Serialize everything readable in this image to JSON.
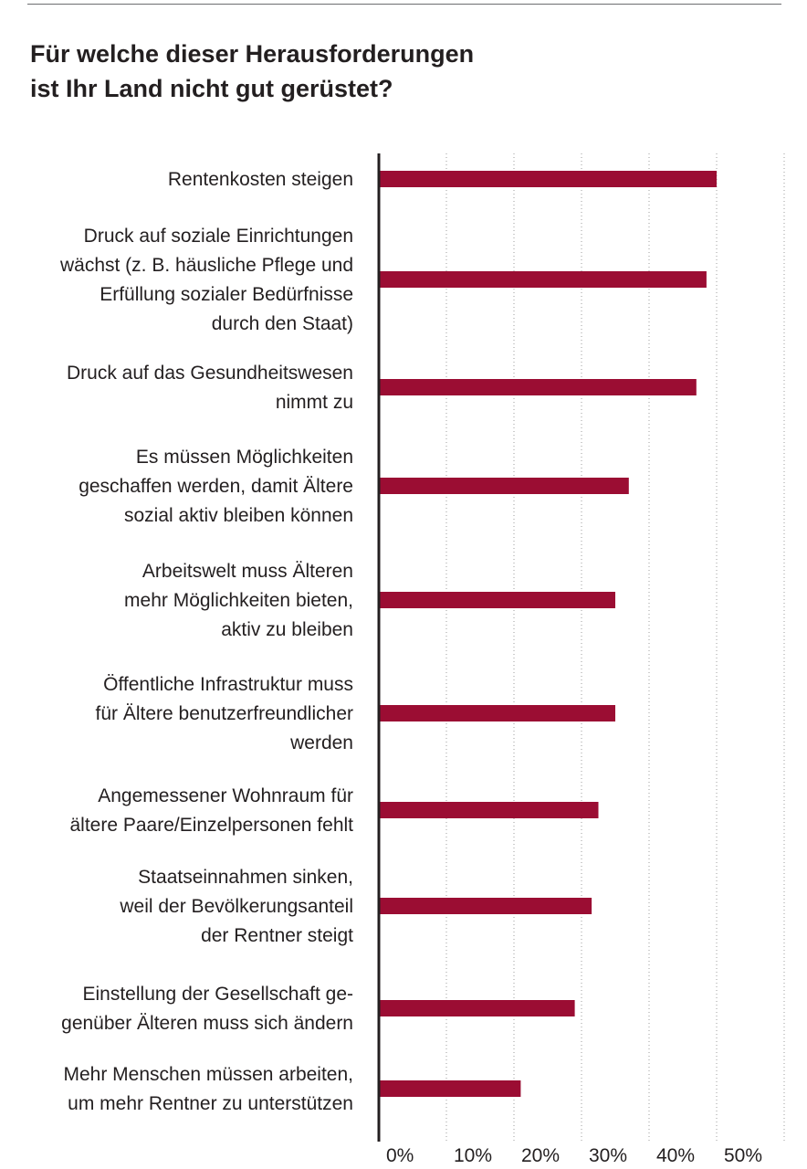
{
  "title_lines": [
    "Für welche dieser Herausforderungen",
    "ist Ihr Land nicht gut gerüstet?"
  ],
  "chart_data": {
    "type": "bar",
    "orientation": "horizontal",
    "title": "Für welche dieser Herausforderungen ist Ihr Land nicht gut gerüstet?",
    "categories": [
      [
        "Rentenkosten steigen"
      ],
      [
        "Druck auf soziale Einrichtungen",
        "wächst (z. B. häusliche Pflege und",
        "Erfüllung sozialer Bedürfnisse",
        "durch den Staat)"
      ],
      [
        "Druck auf das Gesundheitswesen",
        "nimmt zu"
      ],
      [
        "Es müssen Möglichkeiten",
        "geschaffen werden, damit Ältere",
        "sozial aktiv bleiben können"
      ],
      [
        "Arbeitswelt muss Älteren",
        "mehr Möglichkeiten bieten,",
        "aktiv zu bleiben"
      ],
      [
        "Öffentliche Infrastruktur muss",
        "für Ältere benutzerfreundlicher",
        "werden"
      ],
      [
        "Angemessener Wohnraum für",
        "ältere Paare/Einzelpersonen fehlt"
      ],
      [
        "Staatseinnahmen sinken,",
        "weil der Bevölkerungsanteil",
        "der Rentner steigt"
      ],
      [
        "Einstellung der Gesellschaft ge-",
        "genüber Älteren muss sich ändern"
      ],
      [
        "Mehr Menschen müssen arbeiten,",
        "um mehr Rentner zu unterstützen"
      ]
    ],
    "values": [
      50,
      48.5,
      47,
      37,
      35,
      35,
      32.5,
      31.5,
      29,
      21
    ],
    "xlim": [
      0,
      60
    ],
    "xticks": [
      "0%",
      "10%",
      "20%",
      "30%",
      "40%",
      "50%"
    ],
    "grid": true,
    "bar_color": "#9b0d33"
  }
}
